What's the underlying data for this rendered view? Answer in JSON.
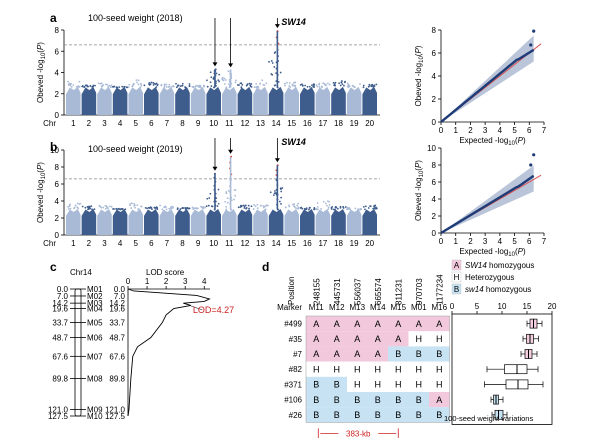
{
  "colors": {
    "light": "#a9bad7",
    "dark": "#3e5c8c",
    "threshold": "#888888",
    "highlight": "#e0463a",
    "qq_points": "#1f3c78",
    "qq_ci": "#a9b6cf",
    "qq_line": "#d9534f",
    "geno_A": "#f2c9dc",
    "geno_H": "#ffffff",
    "geno_B": "#c6e2f3",
    "lod_red": "#cc2222",
    "box_pink": "#f5cfe0",
    "box_blue": "#c6e2f3"
  },
  "panels": {
    "a": {
      "label": "a",
      "title": "100-seed weight (2018)",
      "gene": "SW14",
      "gene_arrow": "↓"
    },
    "b": {
      "label": "b",
      "title": "100-seed weight (2019)",
      "gene": "SW14",
      "gene_arrow": "↓"
    },
    "c": {
      "label": "c",
      "chr_title": "Chr14",
      "lod_title": "LOD score",
      "lod_label": "LOD=4.27"
    },
    "d": {
      "label": "d",
      "position_label": "Position",
      "marker_label": "Marker",
      "bracket_label": "383-kb",
      "box_xlabel": "100-seed weight variations"
    }
  },
  "chart_data": [
    {
      "type": "scatter",
      "name": "manhattan-2018",
      "title": "100-seed weight (2018)",
      "ylabel": "Obs log P",
      "xlabel": "Chr",
      "x_categories": [
        "1",
        "2",
        "3",
        "4",
        "5",
        "6",
        "7",
        "8",
        "9",
        "10",
        "11",
        "12",
        "13",
        "14",
        "15",
        "16",
        "17",
        "18",
        "19",
        "20"
      ],
      "ylim": [
        0,
        8
      ],
      "yticks": [
        0,
        2,
        4,
        6,
        8
      ],
      "threshold": 6.6,
      "peaks": [
        {
          "chr": "10",
          "value": 4.3
        },
        {
          "chr": "11",
          "value": 4.2
        },
        {
          "chr": "14",
          "value": 7.9
        }
      ],
      "baseline_max": 2.6,
      "scatter_tops": [
        3.2,
        2.8,
        3.0,
        2.7,
        3.3,
        3.1,
        2.9,
        3.0,
        2.8,
        4.3,
        4.2,
        3.0,
        3.4,
        7.9,
        3.1,
        2.9,
        3.0,
        3.2,
        3.0,
        2.9
      ]
    },
    {
      "type": "scatter",
      "name": "manhattan-2019",
      "title": "100-seed weight (2019)",
      "ylabel": "Obs log P",
      "xlabel": "Chr",
      "x_categories": [
        "1",
        "2",
        "3",
        "4",
        "5",
        "6",
        "7",
        "8",
        "9",
        "10",
        "11",
        "12",
        "13",
        "14",
        "15",
        "16",
        "17",
        "18",
        "19",
        "20"
      ],
      "ylim": [
        0,
        10
      ],
      "yticks": [
        0,
        2,
        4,
        6,
        8,
        10
      ],
      "threshold": 6.6,
      "peaks": [
        {
          "chr": "10",
          "value": 7.2
        },
        {
          "chr": "11",
          "value": 9.2
        },
        {
          "chr": "14",
          "value": 8.2
        }
      ],
      "baseline_max": 3.0,
      "scatter_tops": [
        3.8,
        3.4,
        3.5,
        3.1,
        3.9,
        3.3,
        3.6,
        3.2,
        3.4,
        7.2,
        9.2,
        3.5,
        3.6,
        8.2,
        3.7,
        3.3,
        4.0,
        3.4,
        3.2,
        3.5
      ]
    },
    {
      "type": "scatter",
      "name": "qq-2018",
      "xlabel": "Expected log P",
      "ylabel": "Obs log P",
      "xlim": [
        0,
        7
      ],
      "ylim": [
        0,
        8
      ],
      "xticks": [
        0,
        1,
        2,
        3,
        4,
        5,
        6,
        7
      ],
      "yticks": [
        0,
        2,
        4,
        6,
        8
      ],
      "max_point": [
        6.3,
        7.9
      ]
    },
    {
      "type": "scatter",
      "name": "qq-2019",
      "xlabel": "Expected log P",
      "ylabel": "Obs log P",
      "xlim": [
        0,
        7
      ],
      "ylim": [
        0,
        10
      ],
      "xticks": [
        0,
        1,
        2,
        3,
        4,
        5,
        6,
        7
      ],
      "yticks": [
        0,
        2,
        4,
        6,
        8,
        10
      ],
      "max_point": [
        6.3,
        9.2
      ]
    },
    {
      "type": "line",
      "name": "lod-chr14",
      "title": "LOD score",
      "xlim": [
        0,
        4.3
      ],
      "xticks": [
        0,
        1,
        2,
        3,
        4
      ],
      "lod_peak": 4.27,
      "markers": [
        {
          "name": "M01",
          "pos_cm": "0.0",
          "lod": 0.0,
          "dist": 0
        },
        {
          "name": "M02",
          "pos_cm": "7.0",
          "lod": 0.2,
          "dist": 7
        },
        {
          "name": "M03",
          "pos_cm": "14.2",
          "lod": 4.27,
          "dist": 14.2
        },
        {
          "name": "M04",
          "pos_cm": "19.6",
          "lod": 2.4,
          "dist": 19.6
        },
        {
          "name": "M05",
          "pos_cm": "33.7",
          "lod": 1.8,
          "dist": 33.7
        },
        {
          "name": "M06",
          "pos_cm": "48.7",
          "lod": 1.2,
          "dist": 48.7
        },
        {
          "name": "M07",
          "pos_cm": "67.6",
          "lod": 0.25,
          "dist": 67.6
        },
        {
          "name": "M08",
          "pos_cm": "89.8",
          "lod": 0.1,
          "dist": 89.8
        },
        {
          "name": "M09",
          "pos_cm": "121.0",
          "lod": 0.0,
          "dist": 121.0
        },
        {
          "name": "M10",
          "pos_cm": "127.5",
          "lod": 0.0,
          "dist": 127.5
        }
      ]
    },
    {
      "type": "table",
      "name": "genotype-table",
      "positions": [
        "248155",
        "445731",
        "556037",
        "665574",
        "811231",
        "970703",
        "1177234"
      ],
      "markers": [
        "M11",
        "M12",
        "M13",
        "M14",
        "M15",
        "M01",
        "M16"
      ],
      "rows": [
        {
          "id": "#499",
          "cells": [
            "A",
            "A",
            "A",
            "A",
            "A",
            "A",
            "A"
          ]
        },
        {
          "id": "#35",
          "cells": [
            "A",
            "A",
            "A",
            "A",
            "A",
            "H",
            "H"
          ]
        },
        {
          "id": "#7",
          "cells": [
            "A",
            "A",
            "A",
            "A",
            "B",
            "B",
            "B"
          ]
        },
        {
          "id": "#82",
          "cells": [
            "H",
            "H",
            "H",
            "H",
            "H",
            "H",
            "H"
          ]
        },
        {
          "id": "#371",
          "cells": [
            "B",
            "B",
            "H",
            "H",
            "H",
            "H",
            "H"
          ]
        },
        {
          "id": "#106",
          "cells": [
            "B",
            "B",
            "B",
            "B",
            "B",
            "B",
            "A"
          ]
        },
        {
          "id": "#26",
          "cells": [
            "B",
            "B",
            "B",
            "B",
            "B",
            "B",
            "B"
          ]
        }
      ],
      "legend": [
        {
          "key": "A",
          "italic": "SW14",
          "text": " homozygous"
        },
        {
          "key": "H",
          "italic": "",
          "text": "Heterozygous"
        },
        {
          "key": "B",
          "italic": "sw14",
          "text": " homozygous"
        }
      ]
    },
    {
      "type": "bar",
      "name": "seed-weight-boxplots",
      "xlabel": "100-seed weight variations",
      "xlim": [
        0,
        20
      ],
      "xticks": [
        0,
        5,
        10,
        15,
        20
      ],
      "boxes": [
        {
          "id": "#499",
          "min": 15.0,
          "q1": 15.6,
          "median": 16.3,
          "q3": 17.0,
          "max": 18.0,
          "color": "pink"
        },
        {
          "id": "#35",
          "min": 14.2,
          "q1": 14.9,
          "median": 15.6,
          "q3": 16.3,
          "max": 17.3,
          "color": "pink"
        },
        {
          "id": "#7",
          "min": 13.8,
          "q1": 14.6,
          "median": 15.3,
          "q3": 16.0,
          "max": 17.0,
          "color": "pink"
        },
        {
          "id": "#82",
          "min": 7.0,
          "q1": 10.5,
          "median": 13.0,
          "q3": 15.0,
          "max": 17.2,
          "color": "white"
        },
        {
          "id": "#371",
          "min": 6.5,
          "q1": 10.8,
          "median": 13.2,
          "q3": 15.2,
          "max": 18.2,
          "color": "white"
        },
        {
          "id": "#106",
          "min": 7.8,
          "q1": 8.3,
          "median": 8.8,
          "q3": 9.3,
          "max": 10.2,
          "color": "blue"
        },
        {
          "id": "#26",
          "min": 8.0,
          "q1": 8.6,
          "median": 9.3,
          "q3": 10.2,
          "max": 11.0,
          "color": "blue"
        }
      ]
    }
  ]
}
